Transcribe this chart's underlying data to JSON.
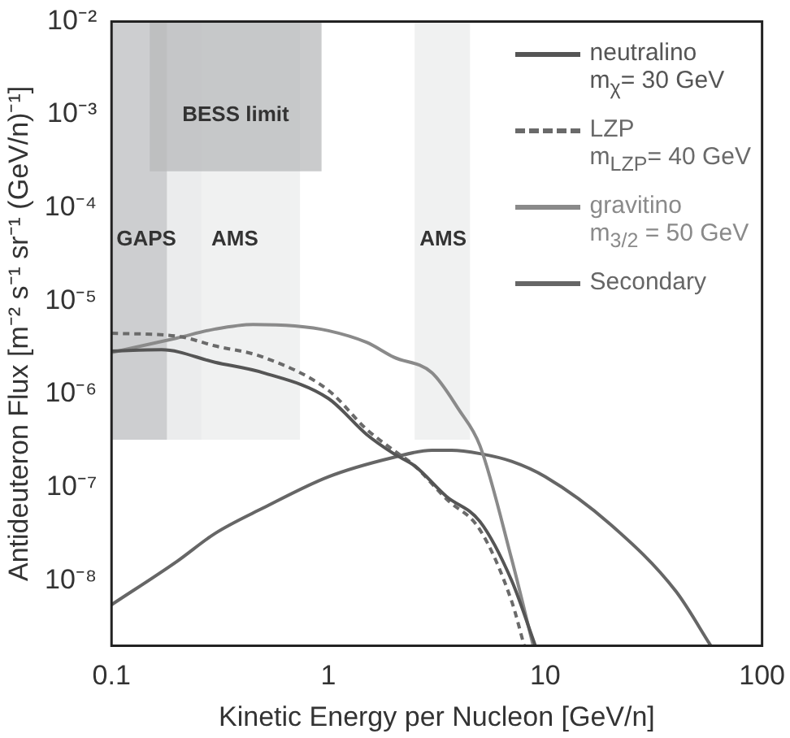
{
  "chart_data": {
    "type": "line",
    "xlabel": "Kinetic Energy per Nucleon [GeV/n]",
    "ylabel": "Antideuteron Flux [m⁻² s⁻¹ sr⁻¹ (GeV/n)⁻¹]",
    "log": "xy",
    "xlim": [
      0.1,
      100
    ],
    "xticks": [
      0.1,
      1,
      10,
      100
    ],
    "ylim": [
      2e-09,
      0.01
    ],
    "yticks": [
      {
        "value": 0.01,
        "label": "10⁻²"
      },
      {
        "value": 0.001,
        "label": "10⁻³"
      },
      {
        "value": 0.0001,
        "label": "10⁻⁴"
      },
      {
        "value": 1e-05,
        "label": "10⁻⁵"
      },
      {
        "value": 1e-06,
        "label": "10⁻⁶"
      },
      {
        "value": 1e-07,
        "label": "10⁻⁷"
      },
      {
        "value": 1e-08,
        "label": "10⁻⁸"
      }
    ],
    "grid": false,
    "legend": "top right",
    "marker": "none",
    "bands": [
      {
        "axis": "x",
        "from": 0.1,
        "to": 0.26,
        "label": "GAPS",
        "color": "#c8c9cb"
      },
      {
        "axis": "x",
        "from": 0.18,
        "to": 0.74,
        "label": "AMS",
        "color": "#eef0ef"
      },
      {
        "axis": "x",
        "from": 0.15,
        "to": 0.93,
        "label": "BESS limit",
        "color": "#b8b9bb"
      },
      {
        "axis": "x",
        "from": 2.5,
        "to": 4.5,
        "label": "AMS",
        "color": "#eef0ef"
      }
    ],
    "series": [
      {
        "name": "neutralino\nm$_{χ}$= 30 GeV",
        "color": "#555555",
        "line_style": "solid",
        "x": [
          0.1,
          0.17,
          0.3,
          0.5,
          1,
          1.5,
          2,
          2.5,
          3.5,
          5,
          7,
          9
        ],
        "values": [
          2.9e-06,
          3e-06,
          2.2e-06,
          1.7e-06,
          9e-07,
          3.7e-07,
          2.3e-07,
          1.7e-07,
          8e-08,
          4.3e-08,
          1e-08,
          2e-09
        ]
      },
      {
        "name": "LZP\nm$_{LZP}$= 40 GeV",
        "color": "#6a6a6a",
        "line_style": "dashed",
        "x": [
          0.1,
          0.2,
          0.3,
          0.5,
          1,
          1.5,
          2,
          2.5,
          3.5,
          5,
          7,
          8
        ],
        "values": [
          4.5e-06,
          4.2e-06,
          3.3e-06,
          2.5e-06,
          1.1e-06,
          4.2e-07,
          2.5e-07,
          1.7e-07,
          7.5e-08,
          3.5e-08,
          6e-09,
          2e-09
        ]
      },
      {
        "name": "gravitino\nm$_{3/2}$ = 50 GeV",
        "color": "#8a8a8a",
        "line_style": "solid",
        "x": [
          0.1,
          0.2,
          0.3,
          0.45,
          0.7,
          1,
          1.5,
          2,
          3,
          4,
          5,
          7,
          8.8
        ],
        "values": [
          2.8e-06,
          4e-06,
          5e-06,
          5.6e-06,
          5.4e-06,
          4.8e-06,
          3.6e-06,
          2.5e-06,
          1.7e-06,
          6.8e-07,
          2.8e-07,
          1.7e-08,
          2e-09
        ]
      },
      {
        "name": "Secondary",
        "color": "#666666",
        "line_style": "solid",
        "x": [
          0.1,
          0.2,
          0.3,
          0.5,
          1,
          2,
          3,
          3.7,
          5,
          7,
          10,
          20,
          40,
          58
        ],
        "values": [
          5.5e-09,
          1.6e-08,
          3.2e-08,
          6e-08,
          1.3e-07,
          2.1e-07,
          2.5e-07,
          2.5e-07,
          2.3e-07,
          1.9e-07,
          1.3e-07,
          4e-08,
          7.7e-09,
          2e-09
        ]
      }
    ]
  }
}
